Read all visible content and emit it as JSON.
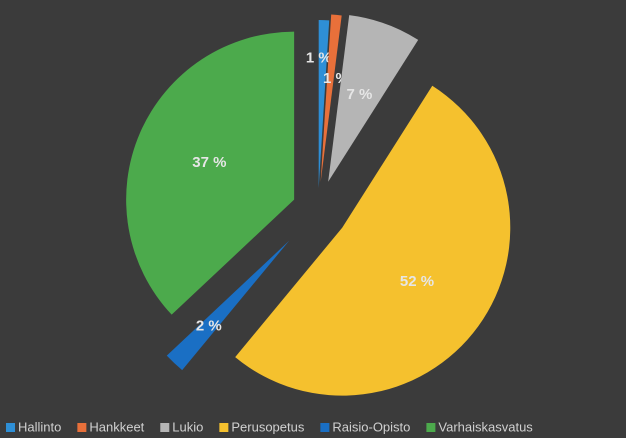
{
  "chart_data": {
    "type": "pie",
    "categories": [
      "Hallinto",
      "Hankkeet",
      "Lukio",
      "Perusopetus",
      "Raisio-Opisto",
      "Varhaiskasvatus"
    ],
    "values": [
      1,
      1,
      7,
      52,
      2,
      37
    ],
    "value_labels": [
      "1 %",
      "1 %",
      "7 %",
      "52 %",
      "2 %",
      "37 %"
    ],
    "colors": [
      "#2e8fd6",
      "#e8703a",
      "#b5b5b5",
      "#f5c12e",
      "#1a6fc4",
      "#4caa4c"
    ],
    "legend": "bottom"
  }
}
